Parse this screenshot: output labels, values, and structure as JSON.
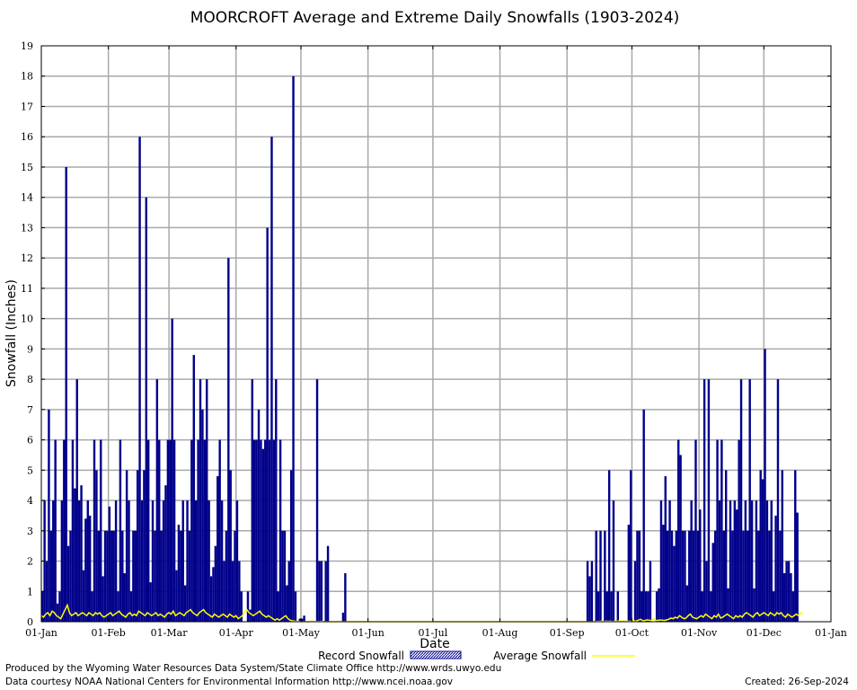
{
  "chart_data": {
    "type": "bar",
    "title": "MOORCROFT Average and Extreme Daily Snowfalls (1903-2024)",
    "xlabel": "Date",
    "ylabel": "Snowfall (Inches)",
    "ylim": [
      0,
      19
    ],
    "yticks": [
      0,
      1,
      2,
      3,
      4,
      5,
      6,
      7,
      8,
      9,
      10,
      11,
      12,
      13,
      14,
      15,
      16,
      17,
      18,
      19
    ],
    "xlim": [
      1,
      366
    ],
    "xticks": [
      {
        "day": 1,
        "label": "01-Jan"
      },
      {
        "day": 32,
        "label": "01-Feb"
      },
      {
        "day": 60,
        "label": "01-Mar"
      },
      {
        "day": 91,
        "label": "01-Apr"
      },
      {
        "day": 121,
        "label": "01-May"
      },
      {
        "day": 152,
        "label": "01-Jun"
      },
      {
        "day": 182,
        "label": "01-Jul"
      },
      {
        "day": 213,
        "label": "01-Aug"
      },
      {
        "day": 244,
        "label": "01-Sep"
      },
      {
        "day": 274,
        "label": "01-Oct"
      },
      {
        "day": 305,
        "label": "01-Nov"
      },
      {
        "day": 335,
        "label": "01-Dec"
      },
      {
        "day": 366,
        "label": "01-Jan"
      }
    ],
    "grid": true,
    "legend_position": "bottom",
    "series": [
      {
        "name": "Record Snowfall",
        "color": "#00008B",
        "start_day": 1,
        "values": [
          1,
          4,
          2,
          7,
          3,
          4,
          6,
          0.6,
          1,
          4,
          6,
          15,
          2.5,
          3,
          6,
          4.4,
          8,
          4,
          4.5,
          1.7,
          3.4,
          4,
          3.5,
          1,
          6,
          5,
          3,
          6,
          1.5,
          3,
          3,
          3.8,
          3,
          3,
          4,
          1,
          6,
          3,
          1.6,
          5,
          4,
          1,
          3,
          3,
          5,
          16,
          4,
          5,
          14,
          6,
          1.3,
          4,
          3,
          8,
          6,
          3,
          4,
          4.5,
          6,
          6,
          10,
          6,
          1.7,
          3.2,
          3,
          4,
          1.2,
          4,
          3,
          6,
          8.8,
          4,
          6,
          8,
          7,
          6,
          8,
          4,
          1.5,
          1.8,
          2.5,
          4.8,
          6,
          4,
          2,
          3,
          12,
          5,
          2,
          3,
          4,
          2,
          1,
          0,
          0,
          1,
          0.4,
          8,
          6,
          6,
          7,
          6,
          5.7,
          6,
          13,
          6,
          16,
          6,
          8,
          1,
          6,
          3,
          3,
          1.2,
          2,
          5,
          18,
          1,
          0,
          0.1,
          0.1,
          0.2,
          0,
          0,
          0,
          0,
          0,
          8,
          2,
          2,
          0,
          2,
          2.5,
          0,
          0,
          0,
          0,
          0,
          0,
          0.3,
          1.6,
          0,
          0,
          0,
          0,
          0,
          0,
          0,
          0,
          0,
          0,
          0,
          0,
          0,
          0,
          0,
          0,
          0,
          0,
          0,
          0,
          0,
          0,
          0,
          0,
          0,
          0,
          0,
          0,
          0,
          0,
          0,
          0,
          0,
          0,
          0,
          0,
          0,
          0,
          0,
          0,
          0,
          0,
          0,
          0,
          0,
          0,
          0,
          0,
          0,
          0,
          0,
          0,
          0,
          0,
          0,
          0,
          0,
          0,
          0,
          0,
          0,
          0,
          0,
          0,
          0,
          0,
          0,
          0,
          0,
          0,
          0,
          0,
          0,
          0,
          0,
          0,
          0,
          0,
          0,
          0,
          0,
          0,
          0,
          0,
          0,
          0,
          0,
          0,
          0,
          0,
          0,
          0,
          0,
          0,
          0,
          0,
          0,
          0,
          0,
          0,
          0,
          0,
          0,
          0,
          0,
          0,
          0,
          0,
          0,
          0,
          0,
          2,
          1.5,
          2,
          0,
          3,
          1,
          3,
          0,
          3,
          1,
          5,
          1,
          4,
          0,
          1,
          0,
          0,
          0,
          0,
          3.2,
          5,
          0,
          2,
          3,
          3,
          1,
          7,
          1,
          1,
          2,
          0,
          0,
          1,
          1.1,
          4,
          3.2,
          4.8,
          3,
          4,
          3,
          2.5,
          3,
          6,
          5.5,
          3,
          3,
          1.2,
          3,
          4,
          3,
          6,
          3,
          3.7,
          1,
          8,
          2,
          8,
          1,
          2.6,
          3,
          6,
          4,
          6,
          3,
          5,
          1.1,
          4,
          3,
          4,
          3.7,
          6,
          8,
          3,
          4,
          3,
          8,
          4,
          1.1,
          4,
          3,
          5,
          4.7,
          9,
          4,
          3,
          4,
          1,
          3.5,
          8,
          3,
          5,
          1.6,
          2,
          2,
          1.6,
          1,
          5,
          3.6
        ]
      },
      {
        "name": "Average Snowfall",
        "color": "#FFFF00",
        "start_day": 1,
        "values": [
          0.2,
          0.15,
          0.25,
          0.3,
          0.2,
          0.35,
          0.3,
          0.2,
          0.15,
          0.1,
          0.25,
          0.4,
          0.55,
          0.3,
          0.2,
          0.25,
          0.3,
          0.2,
          0.25,
          0.3,
          0.25,
          0.2,
          0.3,
          0.25,
          0.2,
          0.3,
          0.25,
          0.3,
          0.2,
          0.15,
          0.2,
          0.25,
          0.3,
          0.2,
          0.25,
          0.3,
          0.35,
          0.25,
          0.2,
          0.15,
          0.25,
          0.3,
          0.2,
          0.25,
          0.2,
          0.35,
          0.3,
          0.25,
          0.2,
          0.3,
          0.25,
          0.2,
          0.25,
          0.3,
          0.2,
          0.25,
          0.2,
          0.15,
          0.25,
          0.3,
          0.25,
          0.35,
          0.2,
          0.25,
          0.3,
          0.25,
          0.2,
          0.3,
          0.35,
          0.4,
          0.3,
          0.25,
          0.2,
          0.3,
          0.35,
          0.4,
          0.3,
          0.25,
          0.2,
          0.15,
          0.25,
          0.2,
          0.15,
          0.2,
          0.25,
          0.2,
          0.15,
          0.25,
          0.2,
          0.15,
          0.2,
          0.1,
          0.15,
          0.2,
          0.35,
          0.4,
          0.3,
          0.25,
          0.2,
          0.25,
          0.3,
          0.35,
          0.25,
          0.2,
          0.15,
          0.2,
          0.15,
          0.1,
          0.05,
          0.1,
          0.05,
          0.1,
          0.15,
          0.2,
          0.1,
          0.05,
          0.03,
          0.02,
          0.01,
          0.01,
          0,
          0,
          0,
          0,
          0,
          0.02,
          0.01,
          0.01,
          0,
          0.01,
          0.01,
          0,
          0,
          0,
          0,
          0,
          0,
          0,
          0.01,
          0,
          0,
          0,
          0,
          0,
          0,
          0,
          0,
          0,
          0,
          0,
          0,
          0,
          0,
          0,
          0,
          0,
          0,
          0,
          0,
          0,
          0,
          0,
          0,
          0,
          0,
          0,
          0,
          0,
          0,
          0,
          0,
          0,
          0,
          0,
          0,
          0,
          0,
          0,
          0,
          0,
          0,
          0,
          0,
          0,
          0,
          0,
          0,
          0,
          0,
          0,
          0,
          0,
          0,
          0,
          0,
          0,
          0,
          0,
          0,
          0,
          0,
          0,
          0,
          0,
          0,
          0,
          0,
          0,
          0,
          0,
          0,
          0,
          0,
          0,
          0,
          0,
          0,
          0,
          0,
          0,
          0,
          0,
          0,
          0,
          0,
          0,
          0,
          0,
          0,
          0,
          0,
          0,
          0,
          0,
          0,
          0,
          0,
          0,
          0,
          0,
          0,
          0,
          0,
          0,
          0,
          0,
          0,
          0,
          0,
          0,
          0,
          0,
          0,
          0,
          0,
          0,
          0,
          0.01,
          0.01,
          0.02,
          0,
          0.02,
          0.01,
          0.02,
          0,
          0.02,
          0.01,
          0.03,
          0.02,
          0.03,
          0.01,
          0.02,
          0.01,
          0.02,
          0.03,
          0.02,
          0.05,
          0.08,
          0.03,
          0.04,
          0.06,
          0.05,
          0.04,
          0.1,
          0.05,
          0.04,
          0.06,
          0.05,
          0.04,
          0.06,
          0.08,
          0.12,
          0.1,
          0.15,
          0.12,
          0.2,
          0.15,
          0.1,
          0.12,
          0.2,
          0.25,
          0.15,
          0.12,
          0.1,
          0.15,
          0.2,
          0.15,
          0.25,
          0.2,
          0.15,
          0.1,
          0.2,
          0.15,
          0.25,
          0.12,
          0.15,
          0.2,
          0.25,
          0.2,
          0.15,
          0.1,
          0.2,
          0.15,
          0.2,
          0.15,
          0.25,
          0.3,
          0.25,
          0.2,
          0.15,
          0.25,
          0.3,
          0.2,
          0.25,
          0.3,
          0.25,
          0.2,
          0.3,
          0.25,
          0.2,
          0.3,
          0.25,
          0.3,
          0.2,
          0.15,
          0.25,
          0.2,
          0.15,
          0.2,
          0.25,
          0.2,
          0.3,
          0.25
        ]
      }
    ]
  },
  "footer": {
    "produced_by": "Produced by the Wyoming Water Resources Data System/State Climate Office http://www.wrds.uwyo.edu",
    "courtesy": "Data courtesy NOAA National Centers for Environmental Information http://www.ncei.noaa.gov",
    "created": "Created:  26-Sep-2024"
  }
}
